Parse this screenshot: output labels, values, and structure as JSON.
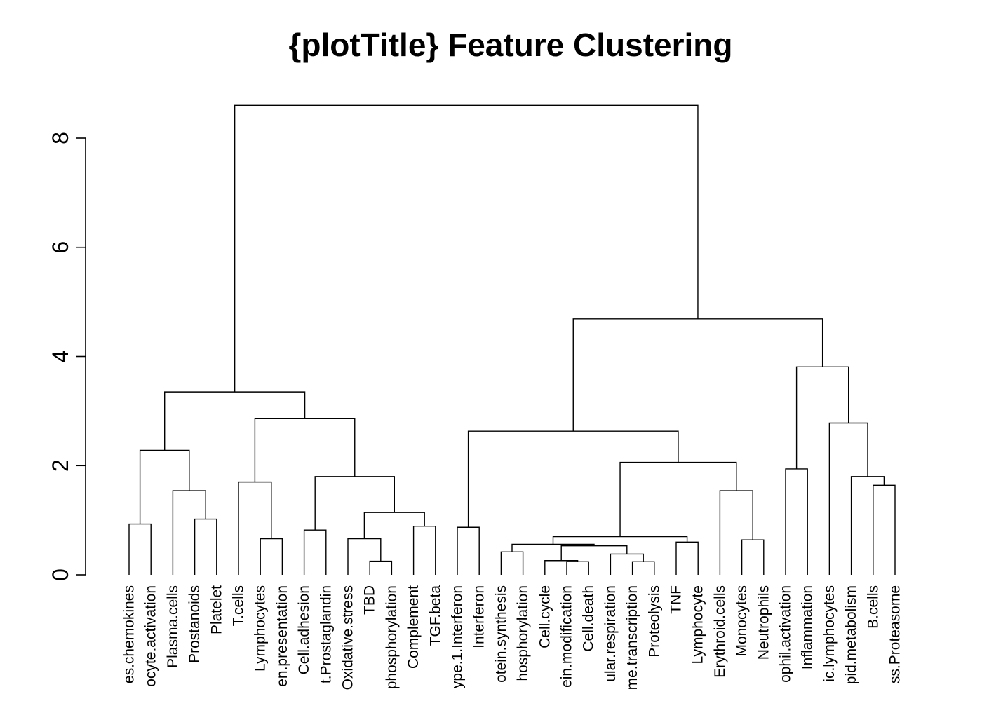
{
  "chart_data": {
    "type": "dendrogram",
    "title": "{plotTitle} Feature Clustering",
    "ylim": [
      0,
      8.8
    ],
    "y_ticks": [
      0,
      2,
      4,
      6,
      8
    ],
    "leaves": [
      "es.chemokines",
      "ocyte.activation",
      "Plasma.cells",
      "Prostanoids",
      "Platelet",
      "T.cells",
      "Lymphocytes",
      "en.presentation",
      "Cell.adhesion",
      "t.Prostaglandin",
      "Oxidative.stress",
      "TBD",
      "phosphorylation",
      "Complement",
      "TGF.beta",
      "ype.1.Interferon",
      "Interferon",
      "otein.synthesis",
      "hosphorylation",
      "Cell.cycle",
      "ein.modification",
      "Cell.death",
      "ular.respiration",
      "me.transcription",
      "Proteolysis",
      "TNF",
      "Lymphocyte",
      "Erythroid.cells",
      "Monocytes",
      "Neutrophils",
      "ophil.activation",
      "Inflammation",
      "ic.lymphocytes",
      "pid.metabolism",
      "B.cells",
      "ss.Proteasome"
    ],
    "merges": [
      {
        "left": 0,
        "right": 1,
        "height": 0.93
      },
      {
        "left": 3,
        "right": 4,
        "height": 1.02
      },
      {
        "left": 2,
        "right": "m1",
        "height": 1.54
      },
      {
        "left": "m0",
        "right": "m2",
        "height": 2.28
      },
      {
        "left": 6,
        "right": 7,
        "height": 0.66
      },
      {
        "left": 5,
        "right": "m4",
        "height": 1.7
      },
      {
        "left": 8,
        "right": 9,
        "height": 0.82
      },
      {
        "left": 11,
        "right": 12,
        "height": 0.25
      },
      {
        "left": 10,
        "right": "m7",
        "height": 0.66
      },
      {
        "left": 13,
        "right": 14,
        "height": 0.89
      },
      {
        "left": "m8",
        "right": "m9",
        "height": 1.14
      },
      {
        "left": "m6",
        "right": "m10",
        "height": 1.8
      },
      {
        "left": "m5",
        "right": "m11",
        "height": 2.86
      },
      {
        "left": "m3",
        "right": "m12",
        "height": 3.35
      },
      {
        "left": 15,
        "right": 16,
        "height": 0.87
      },
      {
        "left": 17,
        "right": 18,
        "height": 0.42
      },
      {
        "left": 20,
        "right": 21,
        "height": 0.24
      },
      {
        "left": 19,
        "right": "m16",
        "height": 0.26
      },
      {
        "left": 23,
        "right": 24,
        "height": 0.24
      },
      {
        "left": 22,
        "right": "m18",
        "height": 0.38
      },
      {
        "left": "m17",
        "right": "m19",
        "height": 0.53
      },
      {
        "left": "m15",
        "right": "m20",
        "height": 0.56
      },
      {
        "left": 25,
        "right": 26,
        "height": 0.6
      },
      {
        "left": "m21",
        "right": "m22",
        "height": 0.7
      },
      {
        "left": 28,
        "right": 29,
        "height": 0.64
      },
      {
        "left": 27,
        "right": "m24",
        "height": 1.54
      },
      {
        "left": "m23",
        "right": "m25",
        "height": 2.06
      },
      {
        "left": "m14",
        "right": "m26",
        "height": 2.63
      },
      {
        "left": 30,
        "right": 31,
        "height": 1.94
      },
      {
        "left": 34,
        "right": 35,
        "height": 1.64
      },
      {
        "left": 33,
        "right": "m29",
        "height": 1.8
      },
      {
        "left": 32,
        "right": "m30",
        "height": 2.78
      },
      {
        "left": "m28",
        "right": "m31",
        "height": 3.81
      },
      {
        "left": "m27",
        "right": "m32",
        "height": 4.69
      },
      {
        "left": "m13",
        "right": "m33",
        "height": 8.6
      }
    ]
  }
}
